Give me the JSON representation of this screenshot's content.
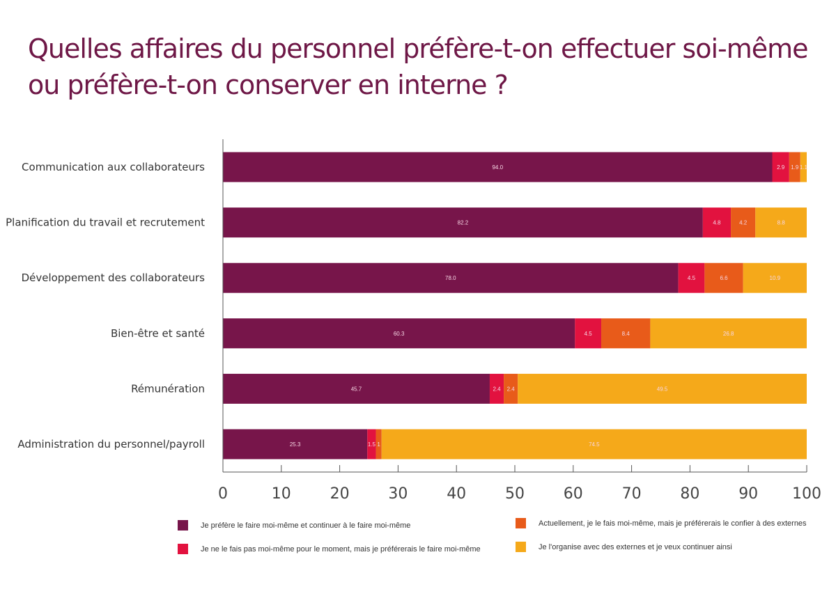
{
  "chart_data": {
    "type": "bar",
    "orientation": "horizontal",
    "stacked": true,
    "title": "Quelles affaires du personnel préfère-t-on effectuer soi-même ou préfère-t-on conserver en interne ?",
    "categories": [
      "Communication aux collaborateurs",
      "Planification du travail et recrutement",
      "Développement des collaborateurs",
      "Bien-être et santé",
      "Rémunération",
      "Administration du personnel/payroll"
    ],
    "series": [
      {
        "name": "Je préfère le faire moi-même et continuer à le faire moi-même",
        "color": "#77154a",
        "values": [
          94.0,
          82.2,
          78.0,
          60.3,
          45.7,
          25.3
        ],
        "labels": [
          "94.0",
          "82.2",
          "78.0",
          "60.3",
          "45.7",
          "25.3"
        ]
      },
      {
        "name": "Je ne le fais pas moi-même pour le moment, mais je préférerais le faire moi-même",
        "color": "#e2123f",
        "values": [
          2.9,
          4.8,
          4.5,
          4.5,
          2.4,
          1.5
        ],
        "labels": [
          "2.9",
          "4.8",
          "4.5",
          "4.5",
          "2.4",
          "1.5"
        ]
      },
      {
        "name": "Actuellement, je le fais moi-même, mais je préférerais le confier à des externes",
        "color": "#e85b1a",
        "values": [
          1.9,
          4.2,
          6.6,
          8.4,
          2.4,
          1.0
        ],
        "labels": [
          "1.9",
          "4.2",
          "6.6",
          "8.4",
          "2.4",
          "1"
        ]
      },
      {
        "name": "Je l'organise avec des externes et je veux continuer ainsi",
        "color": "#f5a91a",
        "values": [
          1.1,
          8.8,
          10.9,
          26.8,
          49.5,
          74.5
        ],
        "labels": [
          "1.1",
          "8.8",
          "10.9",
          "26.8",
          "49.5",
          "74.5"
        ]
      }
    ],
    "xlim": [
      0,
      100
    ],
    "xticks": [
      "0",
      "10",
      "20",
      "30",
      "40",
      "50",
      "60",
      "70",
      "80",
      "90",
      "100"
    ],
    "grid": false,
    "legend_position": "bottom"
  }
}
